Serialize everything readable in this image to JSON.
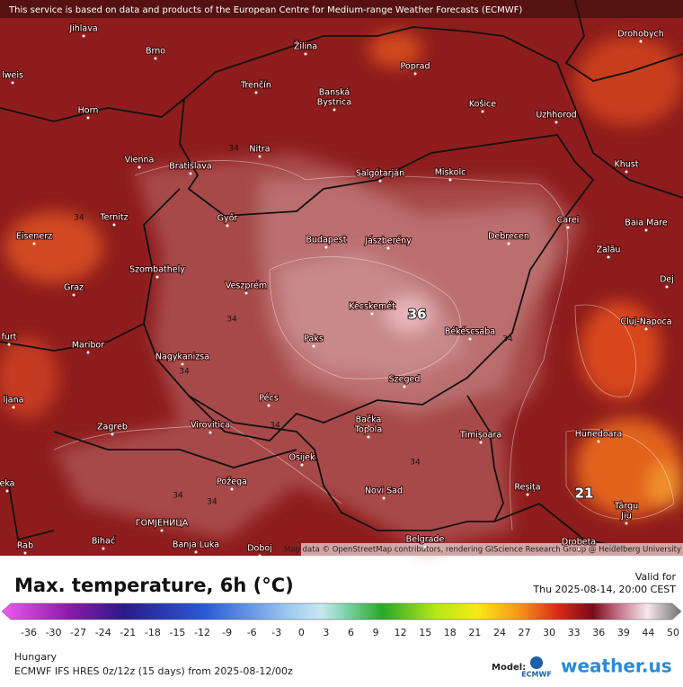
{
  "disclaimer": "This service is based on data and products of the European Centre for Medium-range Weather Forecasts (ECMWF)",
  "attribution": "Map data © OpenStreetMap contributors, rendering GIScience Research Group @ Heidelberg University",
  "cities": [
    "Jihlava",
    "Brno",
    "Žilina",
    "Poprad",
    "Drohobych",
    "lweis",
    "Trenčín",
    "Banská",
    "Bystrica",
    "Košice",
    "Uzhhorod",
    "Horn",
    "Nitra",
    "Vienna",
    "Bratislava",
    "Khust",
    "Salgótarján",
    "Miskolc",
    "Ternitz",
    "Győr",
    "Carei",
    "Baia Mare",
    "Eisenerz",
    "Budapest",
    "Jászberény",
    "Debrecen",
    "Szombathely",
    "Zalău",
    "Graz",
    "Veszprém",
    "Dej",
    "Kecskemét",
    "Cluj-Napoca",
    "Paks",
    "Békéscsaba",
    "furt",
    "Maribor",
    "Nagykanizsa",
    "Szeged",
    "ljana",
    "Pécs",
    "Zagreb",
    "Virovitica",
    "Bačka",
    "Topola",
    "Timișoara",
    "Hunedoara",
    "Osijek",
    "eka",
    "Požega",
    "Novi Sad",
    "Reșița",
    "Târgu",
    "Jiu",
    "ГОМЈЕНИЦА",
    "Bihać",
    "Banja Luka",
    "Doboj",
    "Belgrade",
    "Drobeta",
    "Rab"
  ],
  "contour_labels": [
    "34",
    "34",
    "34",
    "34",
    "34",
    "34",
    "34",
    "34",
    "34"
  ],
  "extreme_labels": [
    "36",
    "21"
  ],
  "legend": {
    "title": "Max. temperature, 6h (°C)",
    "valid_label": "Valid for",
    "valid_time": "Thu 2025-08-14, 20:00 CEST",
    "ticks": [
      -36,
      -30,
      -27,
      -24,
      -21,
      -18,
      -15,
      -12,
      -9,
      -6,
      -3,
      0,
      3,
      6,
      9,
      12,
      15,
      18,
      21,
      24,
      27,
      30,
      33,
      36,
      39,
      44,
      50
    ]
  },
  "footer": {
    "region": "Hungary",
    "model": "ECMWF IFS HRES 0z/12z (15 days) from  2025-08-12/00z",
    "model_label": "Model:",
    "ecmwf": "ECMWF",
    "brand": "weather.us"
  }
}
